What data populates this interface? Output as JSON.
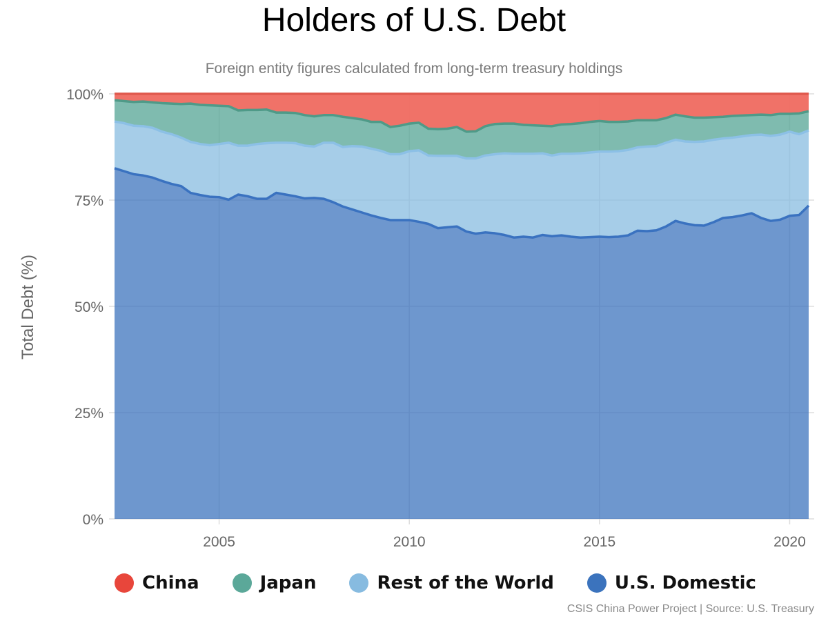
{
  "chart_data": {
    "type": "area",
    "title": "Holders of U.S. Debt",
    "subtitle": "Foreign entity figures calculated from long-term treasury holdings",
    "ylabel": "Total Debt (%)",
    "xlabel": "",
    "stacked": true,
    "ylim": [
      0,
      100
    ],
    "xlim": [
      2002.25,
      2020.5
    ],
    "y_ticks": [
      "0%",
      "25%",
      "50%",
      "75%",
      "100%"
    ],
    "x_ticks": [
      "2005",
      "2010",
      "2015",
      "2020"
    ],
    "grid": true,
    "legend_position": "bottom-left",
    "x": [
      2002.25,
      2002.5,
      2002.75,
      2003,
      2003.25,
      2003.5,
      2003.75,
      2004,
      2004.25,
      2004.5,
      2004.75,
      2005,
      2005.25,
      2005.5,
      2005.75,
      2006,
      2006.25,
      2006.5,
      2006.75,
      2007,
      2007.25,
      2007.5,
      2007.75,
      2008,
      2008.25,
      2008.5,
      2008.75,
      2009,
      2009.25,
      2009.5,
      2009.75,
      2010,
      2010.25,
      2010.5,
      2010.75,
      2011,
      2011.25,
      2011.5,
      2011.75,
      2012,
      2012.25,
      2012.5,
      2012.75,
      2013,
      2013.25,
      2013.5,
      2013.75,
      2014,
      2014.25,
      2014.5,
      2014.75,
      2015,
      2015.25,
      2015.5,
      2015.75,
      2016,
      2016.25,
      2016.5,
      2016.75,
      2017,
      2017.25,
      2017.5,
      2017.75,
      2018,
      2018.25,
      2018.5,
      2018.75,
      2019,
      2019.25,
      2019.5,
      2019.75,
      2020,
      2020.25,
      2020.5
    ],
    "series": [
      {
        "name": "U.S. Domestic",
        "color": "#3b73bd",
        "values": [
          82.5,
          81.8,
          81.1,
          80.8,
          80.3,
          79.5,
          78.8,
          78.3,
          76.7,
          76.2,
          75.8,
          75.7,
          75.1,
          76.3,
          75.9,
          75.3,
          75.3,
          76.7,
          76.3,
          75.9,
          75.4,
          75.5,
          75.3,
          74.5,
          73.5,
          72.8,
          72.1,
          71.4,
          70.8,
          70.3,
          70.3,
          70.3,
          69.9,
          69.4,
          68.4,
          68.6,
          68.8,
          67.6,
          67.1,
          67.4,
          67.2,
          66.8,
          66.2,
          66.4,
          66.2,
          66.8,
          66.5,
          66.7,
          66.4,
          66.2,
          66.3,
          66.4,
          66.3,
          66.4,
          66.7,
          67.8,
          67.7,
          67.9,
          68.8,
          70.1,
          69.5,
          69.1,
          69.0,
          69.8,
          70.8,
          71.0,
          71.4,
          71.9,
          70.8,
          70.1,
          70.4,
          71.3,
          71.5,
          73.7
        ]
      },
      {
        "name": "Rest of the World",
        "color": "#87bbe0",
        "values": [
          11.0,
          11.3,
          11.4,
          11.6,
          11.7,
          11.6,
          11.7,
          11.4,
          12.0,
          12.0,
          12.1,
          12.5,
          13.4,
          11.5,
          11.9,
          12.9,
          13.1,
          11.8,
          12.2,
          12.5,
          12.4,
          12.1,
          13.2,
          14.0,
          14.0,
          14.9,
          15.5,
          15.7,
          15.8,
          15.5,
          15.5,
          16.2,
          16.8,
          16.1,
          17.0,
          16.8,
          16.6,
          17.2,
          17.7,
          18.1,
          18.6,
          19.2,
          19.7,
          19.5,
          19.7,
          19.2,
          19.0,
          19.2,
          19.5,
          19.8,
          19.9,
          20.0,
          20.1,
          20.1,
          20.1,
          19.6,
          19.9,
          19.8,
          19.7,
          19.1,
          19.3,
          19.6,
          19.8,
          19.4,
          18.7,
          18.7,
          18.6,
          18.4,
          19.6,
          20.0,
          20.0,
          19.8,
          19.0,
          17.7
        ]
      },
      {
        "name": "Japan",
        "color": "#5ba899",
        "values": [
          5.0,
          5.2,
          5.6,
          5.8,
          6.0,
          6.7,
          7.2,
          7.9,
          9.0,
          9.2,
          9.4,
          9.0,
          8.6,
          8.3,
          8.4,
          8.0,
          7.9,
          7.1,
          7.1,
          7.1,
          7.2,
          7.1,
          6.5,
          6.5,
          7.1,
          6.6,
          6.4,
          6.3,
          6.8,
          6.4,
          6.7,
          6.5,
          6.5,
          6.3,
          6.3,
          6.4,
          6.8,
          6.3,
          6.4,
          6.9,
          7.1,
          7.0,
          7.1,
          6.8,
          6.7,
          6.5,
          6.9,
          6.9,
          7.0,
          7.1,
          7.2,
          7.2,
          7.0,
          6.9,
          6.7,
          6.4,
          6.2,
          6.1,
          5.8,
          5.9,
          5.9,
          5.7,
          5.6,
          5.3,
          5.1,
          5.1,
          4.9,
          4.7,
          4.7,
          4.9,
          4.9,
          4.2,
          4.9,
          4.5
        ]
      },
      {
        "name": "China",
        "color": "#ef6a60",
        "values": [
          1.5,
          1.7,
          1.9,
          1.8,
          2.0,
          2.2,
          2.3,
          2.4,
          2.3,
          2.6,
          2.7,
          2.8,
          2.9,
          3.9,
          3.8,
          3.8,
          3.7,
          4.4,
          4.4,
          4.5,
          5.0,
          5.3,
          5.0,
          5.0,
          5.4,
          5.7,
          6.0,
          6.6,
          6.6,
          7.8,
          7.5,
          7.0,
          6.8,
          8.2,
          8.3,
          8.2,
          7.8,
          8.9,
          8.8,
          7.6,
          7.1,
          7.0,
          7.0,
          7.3,
          7.4,
          7.5,
          7.6,
          7.2,
          7.1,
          6.9,
          6.6,
          6.4,
          6.6,
          6.6,
          6.5,
          6.2,
          6.2,
          6.2,
          5.7,
          4.9,
          5.3,
          5.6,
          5.6,
          5.5,
          5.4,
          5.2,
          5.1,
          5.0,
          4.9,
          5.0,
          4.7,
          4.7,
          4.6,
          4.1
        ]
      }
    ]
  },
  "legend": [
    {
      "label": "China",
      "color": "#e8463b"
    },
    {
      "label": "Japan",
      "color": "#5ba899"
    },
    {
      "label": "Rest of the World",
      "color": "#87bbe0"
    },
    {
      "label": "U.S. Domestic",
      "color": "#3b73bd"
    }
  ],
  "source": "CSIS China Power Project | Source: U.S. Treasury"
}
